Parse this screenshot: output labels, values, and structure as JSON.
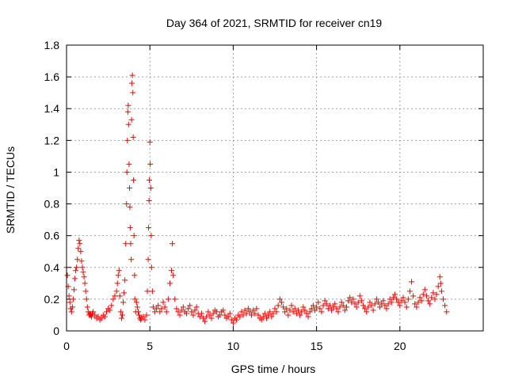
{
  "chart_data": {
    "type": "scatter",
    "title": "Day 364 of 2021, SRMTID for receiver cn19",
    "xlabel": "GPS time / hours",
    "ylabel": "SRMTID / TECUs",
    "xlim": [
      0,
      25
    ],
    "ylim": [
      0,
      1.8
    ],
    "xticks": [
      0,
      5,
      10,
      15,
      20
    ],
    "xtick_labels": [
      "0",
      "5",
      "10",
      "15",
      "20"
    ],
    "yticks": [
      0,
      0.2,
      0.4,
      0.6,
      0.8,
      1.0,
      1.2,
      1.4,
      1.6,
      1.8
    ],
    "ytick_labels": [
      "0",
      "0.2",
      "0.4",
      "0.6",
      "0.8",
      "1",
      "1.2",
      "1.4",
      "1.6",
      "1.8"
    ],
    "grid": true,
    "marker": "+",
    "color": "#ff0000",
    "series": [
      {
        "name": "SRMTID",
        "points": [
          [
            0.0,
            0.4
          ],
          [
            0.05,
            0.35
          ],
          [
            0.1,
            0.28
          ],
          [
            0.15,
            0.22
          ],
          [
            0.2,
            0.18
          ],
          [
            0.25,
            0.14
          ],
          [
            0.3,
            0.12
          ],
          [
            0.35,
            0.15
          ],
          [
            0.4,
            0.2
          ],
          [
            0.45,
            0.26
          ],
          [
            0.5,
            0.33
          ],
          [
            0.55,
            0.38
          ],
          [
            0.6,
            0.4
          ],
          [
            0.65,
            0.45
          ],
          [
            0.7,
            0.52
          ],
          [
            0.75,
            0.57
          ],
          [
            0.8,
            0.55
          ],
          [
            0.85,
            0.5
          ],
          [
            0.9,
            0.44
          ],
          [
            0.95,
            0.4
          ],
          [
            1.0,
            0.37
          ],
          [
            1.05,
            0.34
          ],
          [
            1.1,
            0.3
          ],
          [
            1.15,
            0.25
          ],
          [
            1.2,
            0.2
          ],
          [
            1.25,
            0.15
          ],
          [
            1.3,
            0.12
          ],
          [
            1.35,
            0.1
          ],
          [
            1.4,
            0.11
          ],
          [
            1.45,
            0.1
          ],
          [
            1.5,
            0.09
          ],
          [
            1.55,
            0.11
          ],
          [
            1.6,
            0.12
          ],
          [
            1.7,
            0.1
          ],
          [
            1.8,
            0.08
          ],
          [
            1.9,
            0.09
          ],
          [
            2.0,
            0.07
          ],
          [
            2.1,
            0.08
          ],
          [
            2.2,
            0.1
          ],
          [
            2.3,
            0.09
          ],
          [
            2.4,
            0.12
          ],
          [
            2.5,
            0.14
          ],
          [
            2.6,
            0.13
          ],
          [
            2.7,
            0.16
          ],
          [
            2.8,
            0.2
          ],
          [
            2.9,
            0.22
          ],
          [
            3.0,
            0.25
          ],
          [
            3.05,
            0.3
          ],
          [
            3.1,
            0.35
          ],
          [
            3.15,
            0.38
          ],
          [
            3.2,
            0.22
          ],
          [
            3.25,
            0.12
          ],
          [
            3.3,
            0.08
          ],
          [
            3.35,
            0.1
          ],
          [
            3.4,
            0.18
          ],
          [
            3.45,
            0.24
          ],
          [
            3.5,
            0.32
          ],
          [
            3.55,
            0.55
          ],
          [
            3.6,
            0.8
          ],
          [
            3.62,
            1.0
          ],
          [
            3.65,
            1.2
          ],
          [
            3.68,
            1.38
          ],
          [
            3.7,
            1.42
          ],
          [
            3.72,
            1.3
          ],
          [
            3.75,
            1.05
          ],
          [
            3.78,
            0.9
          ],
          [
            3.8,
            0.78
          ],
          [
            3.82,
            0.65
          ],
          [
            3.85,
            0.55
          ],
          [
            3.88,
            0.45
          ],
          [
            3.9,
            1.33
          ],
          [
            3.92,
            1.56
          ],
          [
            3.95,
            1.61
          ],
          [
            3.98,
            1.5
          ],
          [
            4.0,
            1.22
          ],
          [
            4.02,
            0.95
          ],
          [
            4.05,
            0.6
          ],
          [
            4.08,
            0.35
          ],
          [
            4.1,
            0.2
          ],
          [
            4.15,
            0.12
          ],
          [
            4.2,
            0.18
          ],
          [
            4.25,
            0.15
          ],
          [
            4.3,
            0.12
          ],
          [
            4.35,
            0.1
          ],
          [
            4.4,
            0.08
          ],
          [
            4.45,
            0.07
          ],
          [
            4.5,
            0.08
          ],
          [
            4.6,
            0.09
          ],
          [
            4.7,
            0.07
          ],
          [
            4.8,
            0.1
          ],
          [
            4.85,
            0.25
          ],
          [
            4.9,
            0.45
          ],
          [
            4.92,
            0.65
          ],
          [
            4.95,
            0.82
          ],
          [
            4.97,
            0.95
          ],
          [
            5.0,
            1.19
          ],
          [
            5.02,
            1.05
          ],
          [
            5.05,
            0.9
          ],
          [
            5.08,
            0.6
          ],
          [
            5.1,
            0.4
          ],
          [
            5.15,
            0.25
          ],
          [
            5.2,
            0.15
          ],
          [
            5.3,
            0.12
          ],
          [
            5.4,
            0.14
          ],
          [
            5.5,
            0.16
          ],
          [
            5.6,
            0.12
          ],
          [
            5.7,
            0.14
          ],
          [
            5.8,
            0.18
          ],
          [
            5.9,
            0.15
          ],
          [
            6.0,
            0.12
          ],
          [
            6.1,
            0.2
          ],
          [
            6.2,
            0.3
          ],
          [
            6.3,
            0.38
          ],
          [
            6.35,
            0.55
          ],
          [
            6.4,
            0.35
          ],
          [
            6.5,
            0.2
          ],
          [
            6.6,
            0.14
          ],
          [
            6.7,
            0.12
          ],
          [
            6.8,
            0.1
          ],
          [
            6.9,
            0.13
          ],
          [
            7.0,
            0.15
          ],
          [
            7.1,
            0.12
          ],
          [
            7.2,
            0.11
          ],
          [
            7.3,
            0.14
          ],
          [
            7.4,
            0.16
          ],
          [
            7.5,
            0.12
          ],
          [
            7.6,
            0.1
          ],
          [
            7.7,
            0.13
          ],
          [
            7.8,
            0.15
          ],
          [
            7.9,
            0.11
          ],
          [
            8.0,
            0.09
          ],
          [
            8.1,
            0.11
          ],
          [
            8.2,
            0.08
          ],
          [
            8.3,
            0.06
          ],
          [
            8.4,
            0.09
          ],
          [
            8.5,
            0.12
          ],
          [
            8.6,
            0.1
          ],
          [
            8.7,
            0.08
          ],
          [
            8.8,
            0.11
          ],
          [
            8.9,
            0.13
          ],
          [
            9.0,
            0.12
          ],
          [
            9.1,
            0.09
          ],
          [
            9.2,
            0.1
          ],
          [
            9.3,
            0.12
          ],
          [
            9.4,
            0.13
          ],
          [
            9.5,
            0.1
          ],
          [
            9.6,
            0.08
          ],
          [
            9.7,
            0.09
          ],
          [
            9.8,
            0.11
          ],
          [
            9.9,
            0.07
          ],
          [
            10.0,
            0.05
          ],
          [
            10.1,
            0.08
          ],
          [
            10.2,
            0.07
          ],
          [
            10.3,
            0.1
          ],
          [
            10.4,
            0.09
          ],
          [
            10.5,
            0.12
          ],
          [
            10.6,
            0.1
          ],
          [
            10.7,
            0.13
          ],
          [
            10.8,
            0.11
          ],
          [
            10.9,
            0.14
          ],
          [
            11.0,
            0.12
          ],
          [
            11.1,
            0.1
          ],
          [
            11.2,
            0.13
          ],
          [
            11.3,
            0.11
          ],
          [
            11.4,
            0.14
          ],
          [
            11.5,
            0.1
          ],
          [
            11.6,
            0.08
          ],
          [
            11.7,
            0.07
          ],
          [
            11.8,
            0.09
          ],
          [
            11.9,
            0.11
          ],
          [
            12.0,
            0.08
          ],
          [
            12.1,
            0.1
          ],
          [
            12.2,
            0.12
          ],
          [
            12.3,
            0.09
          ],
          [
            12.4,
            0.11
          ],
          [
            12.5,
            0.14
          ],
          [
            12.6,
            0.12
          ],
          [
            12.7,
            0.16
          ],
          [
            12.8,
            0.2
          ],
          [
            12.9,
            0.18
          ],
          [
            13.0,
            0.15
          ],
          [
            13.1,
            0.12
          ],
          [
            13.2,
            0.14
          ],
          [
            13.3,
            0.1
          ],
          [
            13.4,
            0.13
          ],
          [
            13.5,
            0.16
          ],
          [
            13.6,
            0.12
          ],
          [
            13.7,
            0.14
          ],
          [
            13.8,
            0.11
          ],
          [
            13.9,
            0.13
          ],
          [
            14.0,
            0.1
          ],
          [
            14.1,
            0.12
          ],
          [
            14.2,
            0.15
          ],
          [
            14.3,
            0.13
          ],
          [
            14.4,
            0.11
          ],
          [
            14.5,
            0.09
          ],
          [
            14.6,
            0.12
          ],
          [
            14.7,
            0.14
          ],
          [
            14.8,
            0.16
          ],
          [
            14.9,
            0.13
          ],
          [
            15.0,
            0.15
          ],
          [
            15.1,
            0.18
          ],
          [
            15.2,
            0.14
          ],
          [
            15.3,
            0.12
          ],
          [
            15.4,
            0.16
          ],
          [
            15.5,
            0.19
          ],
          [
            15.6,
            0.17
          ],
          [
            15.7,
            0.14
          ],
          [
            15.8,
            0.16
          ],
          [
            15.9,
            0.13
          ],
          [
            16.0,
            0.15
          ],
          [
            16.1,
            0.17
          ],
          [
            16.2,
            0.14
          ],
          [
            16.3,
            0.12
          ],
          [
            16.4,
            0.15
          ],
          [
            16.5,
            0.18
          ],
          [
            16.6,
            0.16
          ],
          [
            16.7,
            0.13
          ],
          [
            16.8,
            0.15
          ],
          [
            16.9,
            0.19
          ],
          [
            17.0,
            0.21
          ],
          [
            17.1,
            0.18
          ],
          [
            17.2,
            0.2
          ],
          [
            17.3,
            0.17
          ],
          [
            17.4,
            0.15
          ],
          [
            17.5,
            0.18
          ],
          [
            17.6,
            0.22
          ],
          [
            17.7,
            0.19
          ],
          [
            17.8,
            0.16
          ],
          [
            17.9,
            0.14
          ],
          [
            18.0,
            0.12
          ],
          [
            18.1,
            0.15
          ],
          [
            18.2,
            0.18
          ],
          [
            18.3,
            0.16
          ],
          [
            18.4,
            0.13
          ],
          [
            18.5,
            0.17
          ],
          [
            18.6,
            0.2
          ],
          [
            18.7,
            0.18
          ],
          [
            18.8,
            0.15
          ],
          [
            18.9,
            0.17
          ],
          [
            19.0,
            0.19
          ],
          [
            19.1,
            0.16
          ],
          [
            19.2,
            0.14
          ],
          [
            19.3,
            0.17
          ],
          [
            19.4,
            0.2
          ],
          [
            19.5,
            0.18
          ],
          [
            19.6,
            0.21
          ],
          [
            19.7,
            0.23
          ],
          [
            19.8,
            0.2
          ],
          [
            19.9,
            0.18
          ],
          [
            20.0,
            0.16
          ],
          [
            20.1,
            0.19
          ],
          [
            20.2,
            0.21
          ],
          [
            20.3,
            0.18
          ],
          [
            20.4,
            0.15
          ],
          [
            20.5,
            0.2
          ],
          [
            20.6,
            0.25
          ],
          [
            20.7,
            0.31
          ],
          [
            20.8,
            0.22
          ],
          [
            20.9,
            0.17
          ],
          [
            21.0,
            0.15
          ],
          [
            21.1,
            0.18
          ],
          [
            21.2,
            0.21
          ],
          [
            21.3,
            0.19
          ],
          [
            21.4,
            0.23
          ],
          [
            21.5,
            0.26
          ],
          [
            21.6,
            0.22
          ],
          [
            21.7,
            0.19
          ],
          [
            21.8,
            0.17
          ],
          [
            21.9,
            0.21
          ],
          [
            22.0,
            0.24
          ],
          [
            22.1,
            0.2
          ],
          [
            22.2,
            0.23
          ],
          [
            22.3,
            0.28
          ],
          [
            22.4,
            0.34
          ],
          [
            22.45,
            0.3
          ],
          [
            22.5,
            0.25
          ],
          [
            22.6,
            0.2
          ],
          [
            22.7,
            0.16
          ],
          [
            22.8,
            0.12
          ]
        ]
      }
    ]
  }
}
